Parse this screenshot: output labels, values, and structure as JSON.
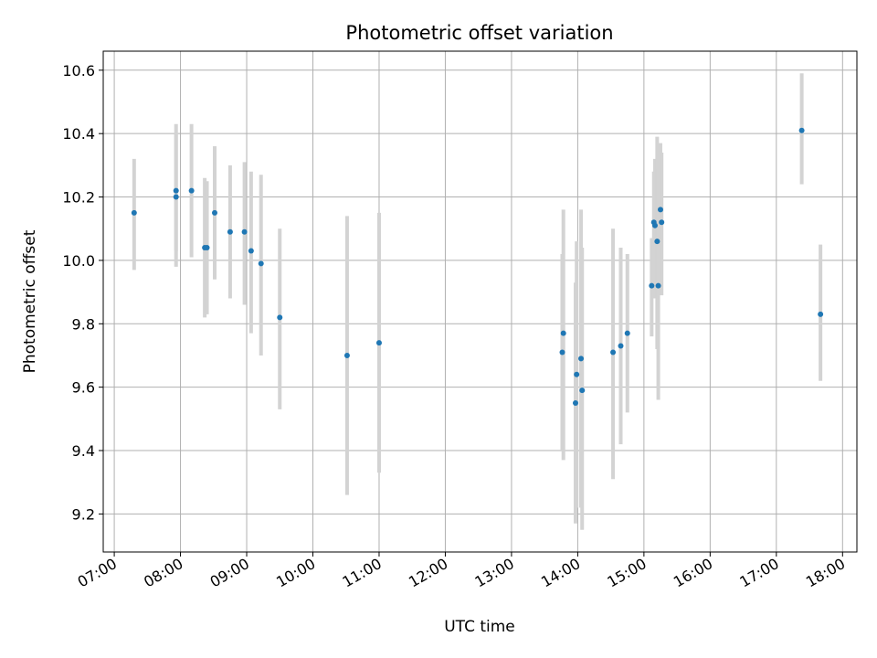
{
  "chart_data": {
    "type": "scatter",
    "title": "Photometric offset variation",
    "xlabel": "UTC time",
    "ylabel": "Photometric offset",
    "xlim": [
      "06:50",
      "18:13"
    ],
    "ylim": [
      9.08,
      10.66
    ],
    "x_ticks": [
      "07:00",
      "08:00",
      "09:00",
      "10:00",
      "11:00",
      "12:00",
      "13:00",
      "14:00",
      "15:00",
      "16:00",
      "17:00",
      "18:00"
    ],
    "y_ticks": [
      "9.2",
      "9.4",
      "9.6",
      "9.8",
      "10.0",
      "10.2",
      "10.4",
      "10.6"
    ],
    "grid": true,
    "colors": {
      "point": "#1f77b4",
      "errorbar": "#d3d3d3",
      "grid": "#b0b0b0"
    },
    "points": [
      {
        "x": "07:18",
        "y": 10.15,
        "err_low": 9.97,
        "err_high": 10.32
      },
      {
        "x": "07:56",
        "y": 10.22,
        "err_low": 10.03,
        "err_high": 10.43
      },
      {
        "x": "07:56",
        "y": 10.2,
        "err_low": 9.98,
        "err_high": 10.4
      },
      {
        "x": "08:10",
        "y": 10.22,
        "err_low": 10.01,
        "err_high": 10.43
      },
      {
        "x": "08:22",
        "y": 10.04,
        "err_low": 9.82,
        "err_high": 10.26
      },
      {
        "x": "08:24",
        "y": 10.04,
        "err_low": 9.83,
        "err_high": 10.25
      },
      {
        "x": "08:31",
        "y": 10.15,
        "err_low": 9.94,
        "err_high": 10.36
      },
      {
        "x": "08:45",
        "y": 10.09,
        "err_low": 9.88,
        "err_high": 10.3
      },
      {
        "x": "08:58",
        "y": 10.09,
        "err_low": 9.86,
        "err_high": 10.31
      },
      {
        "x": "09:04",
        "y": 10.03,
        "err_low": 9.77,
        "err_high": 10.28
      },
      {
        "x": "09:13",
        "y": 9.99,
        "err_low": 9.7,
        "err_high": 10.27
      },
      {
        "x": "09:30",
        "y": 9.82,
        "err_low": 9.53,
        "err_high": 10.1
      },
      {
        "x": "10:31",
        "y": 9.7,
        "err_low": 9.26,
        "err_high": 10.14
      },
      {
        "x": "11:00",
        "y": 9.74,
        "err_low": 9.33,
        "err_high": 10.15
      },
      {
        "x": "13:46",
        "y": 9.71,
        "err_low": 9.4,
        "err_high": 10.02
      },
      {
        "x": "13:47",
        "y": 9.77,
        "err_low": 9.37,
        "err_high": 10.16
      },
      {
        "x": "13:58",
        "y": 9.55,
        "err_low": 9.17,
        "err_high": 9.93
      },
      {
        "x": "13:59",
        "y": 9.64,
        "err_low": 9.22,
        "err_high": 10.06
      },
      {
        "x": "14:03",
        "y": 9.69,
        "err_low": 9.22,
        "err_high": 10.16
      },
      {
        "x": "14:04",
        "y": 9.59,
        "err_low": 9.15,
        "err_high": 10.04
      },
      {
        "x": "14:32",
        "y": 9.71,
        "err_low": 9.31,
        "err_high": 10.1
      },
      {
        "x": "14:39",
        "y": 9.73,
        "err_low": 9.42,
        "err_high": 10.04
      },
      {
        "x": "14:45",
        "y": 9.77,
        "err_low": 9.52,
        "err_high": 10.02
      },
      {
        "x": "15:07",
        "y": 9.92,
        "err_low": 9.76,
        "err_high": 10.07
      },
      {
        "x": "15:09",
        "y": 10.12,
        "err_low": 9.88,
        "err_high": 10.28
      },
      {
        "x": "15:10",
        "y": 10.11,
        "err_low": 9.9,
        "err_high": 10.32
      },
      {
        "x": "15:12",
        "y": 10.06,
        "err_low": 9.72,
        "err_high": 10.39
      },
      {
        "x": "15:13",
        "y": 9.92,
        "err_low": 9.56,
        "err_high": 10.29
      },
      {
        "x": "15:15",
        "y": 10.16,
        "err_low": 9.95,
        "err_high": 10.37
      },
      {
        "x": "15:16",
        "y": 10.12,
        "err_low": 9.89,
        "err_high": 10.34
      },
      {
        "x": "17:23",
        "y": 10.41,
        "err_low": 10.24,
        "err_high": 10.59
      },
      {
        "x": "17:40",
        "y": 9.83,
        "err_low": 9.62,
        "err_high": 10.05
      }
    ]
  }
}
